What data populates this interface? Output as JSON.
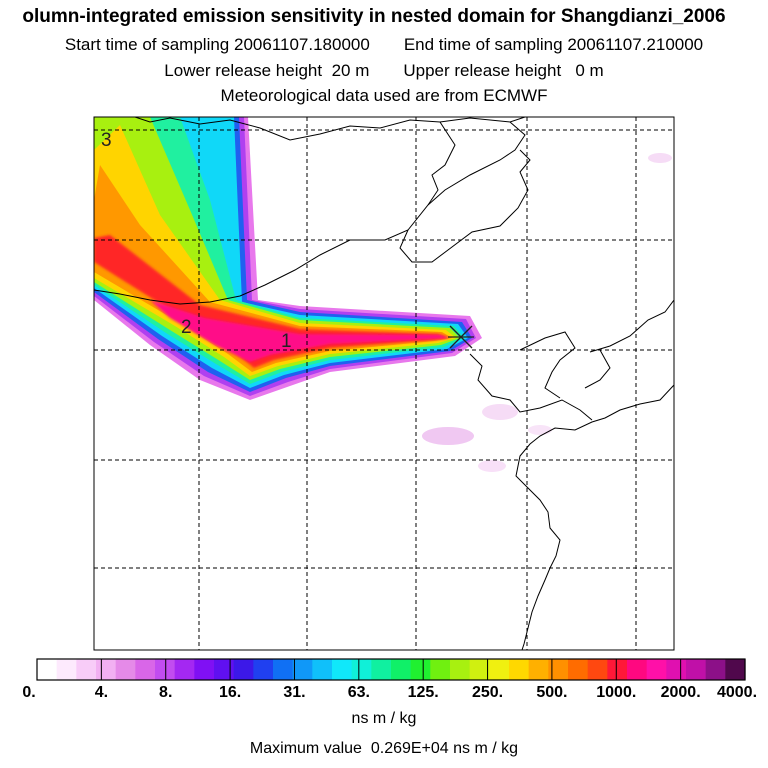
{
  "header": {
    "title": "olumn-integrated emission sensitivity in nested domain for Shangdianzi_2006",
    "start_label": "Start time of sampling",
    "start_value": "20061107.180000",
    "end_label": "End time of sampling",
    "end_value": "20061107.210000",
    "lower_label": "Lower release height",
    "lower_value": "20 m",
    "upper_label": "Upper release height",
    "upper_value": "0 m",
    "met_line": "Meteorological data used are from ECMWF"
  },
  "map": {
    "day_labels": [
      "1",
      "2",
      "3"
    ],
    "receptor_marker": "receptor-x-icon"
  },
  "colorbar": {
    "tick_labels": [
      "0.",
      "4.",
      "8.",
      "16.",
      "31.",
      "63.",
      "125.",
      "250.",
      "500.",
      "1000.",
      "2000.",
      "4000."
    ],
    "units": "ns m / kg",
    "colors": [
      "#ffffff",
      "#fdeafd",
      "#f8ccf8",
      "#f2b0f2",
      "#e58ae8",
      "#d966e8",
      "#c24cf0",
      "#a428f2",
      "#8010f4",
      "#6010f0",
      "#3c18e8",
      "#2040f0",
      "#1070f4",
      "#1098f8",
      "#10c0fa",
      "#10e8fa",
      "#10f0d8",
      "#10f0a0",
      "#10f068",
      "#20f030",
      "#70f010",
      "#a8f010",
      "#d0f010",
      "#f0f010",
      "#ffd800",
      "#ffb000",
      "#ff9000",
      "#ff6c00",
      "#ff4810",
      "#ff1838",
      "#ff0880",
      "#ff10a8",
      "#e010b0",
      "#c010a8",
      "#8c1088",
      "#50084c"
    ]
  },
  "max_value": {
    "label": "Maximum value",
    "value": "0.269E+04",
    "unit": "ns m / kg"
  }
}
